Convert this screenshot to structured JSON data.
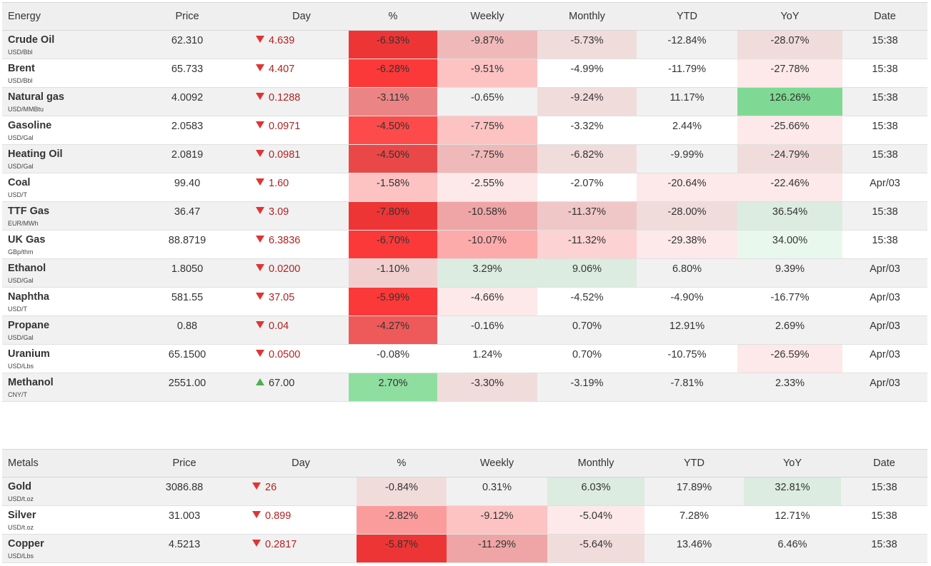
{
  "energy": {
    "headers": [
      "Energy",
      "Price",
      "Day",
      "%",
      "Weekly",
      "Monthly",
      "YTD",
      "YoY",
      "Date"
    ],
    "rows": [
      {
        "name": "Crude Oil",
        "unit": "USD/Bbl",
        "price": "62.310",
        "dir": "down",
        "day": "4.639",
        "pct": "-6.93%",
        "weekly": "-9.87%",
        "monthly": "-5.73%",
        "ytd": "-12.84%",
        "yoy": "-28.07%",
        "date": "15:38",
        "colors": {
          "pct": "#ee3535",
          "weekly": "#f0b9b9",
          "monthly": "#f1dcdc",
          "ytd": "",
          "yoy": "#f1dcdc"
        }
      },
      {
        "name": "Brent",
        "unit": "USD/Bbl",
        "price": "65.733",
        "dir": "down",
        "day": "4.407",
        "pct": "-6.28%",
        "weekly": "-9.51%",
        "monthly": "-4.99%",
        "ytd": "-11.79%",
        "yoy": "-27.78%",
        "date": "15:38",
        "colors": {
          "pct": "#fb3939",
          "weekly": "#fdc3c3",
          "monthly": "",
          "ytd": "",
          "yoy": "#fde9e9"
        }
      },
      {
        "name": "Natural gas",
        "unit": "USD/MMBtu",
        "price": "4.0092",
        "dir": "down",
        "day": "0.1288",
        "pct": "-3.11%",
        "weekly": "-0.65%",
        "monthly": "-9.24%",
        "ytd": "11.17%",
        "yoy": "126.26%",
        "date": "15:38",
        "colors": {
          "pct": "#eb8585",
          "weekly": "",
          "monthly": "#f1dcdc",
          "ytd": "",
          "yoy": "#7fd994"
        }
      },
      {
        "name": "Gasoline",
        "unit": "USD/Gal",
        "price": "2.0583",
        "dir": "down",
        "day": "0.0971",
        "pct": "-4.50%",
        "weekly": "-7.75%",
        "monthly": "-3.32%",
        "ytd": "2.44%",
        "yoy": "-25.66%",
        "date": "15:38",
        "colors": {
          "pct": "#fd4b4b",
          "weekly": "#fdc3c3",
          "monthly": "",
          "ytd": "",
          "yoy": "#fde9e9"
        }
      },
      {
        "name": "Heating Oil",
        "unit": "USD/Gal",
        "price": "2.0819",
        "dir": "down",
        "day": "0.0981",
        "pct": "-4.50%",
        "weekly": "-7.75%",
        "monthly": "-6.82%",
        "ytd": "-9.99%",
        "yoy": "-24.79%",
        "date": "15:38",
        "colors": {
          "pct": "#ea4848",
          "weekly": "#f0b9b9",
          "monthly": "#f1dcdc",
          "ytd": "",
          "yoy": "#f1dcdc"
        }
      },
      {
        "name": "Coal",
        "unit": "USD/T",
        "price": "99.40",
        "dir": "down",
        "day": "1.60",
        "pct": "-1.58%",
        "weekly": "-2.55%",
        "monthly": "-2.07%",
        "ytd": "-20.64%",
        "yoy": "-22.46%",
        "date": "Apr/03",
        "colors": {
          "pct": "#fdc3c3",
          "weekly": "#fde9e9",
          "monthly": "",
          "ytd": "#fde9e9",
          "yoy": "#fde9e9"
        }
      },
      {
        "name": "TTF Gas",
        "unit": "EUR/MWh",
        "price": "36.47",
        "dir": "down",
        "day": "3.09",
        "pct": "-7.80%",
        "weekly": "-10.58%",
        "monthly": "-11.37%",
        "ytd": "-28.00%",
        "yoy": "36.54%",
        "date": "15:38",
        "colors": {
          "pct": "#ee3535",
          "weekly": "#efa5a5",
          "monthly": "#f0c7c7",
          "ytd": "#f1dcdc",
          "yoy": "#dcece0"
        }
      },
      {
        "name": "UK Gas",
        "unit": "GBp/thm",
        "price": "88.8719",
        "dir": "down",
        "day": "6.3836",
        "pct": "-6.70%",
        "weekly": "-10.07%",
        "monthly": "-11.32%",
        "ytd": "-29.38%",
        "yoy": "34.00%",
        "date": "15:38",
        "colors": {
          "pct": "#fb3939",
          "weekly": "#fdaaaa",
          "monthly": "#fdd2d2",
          "ytd": "#fde9e9",
          "yoy": "#e9f8ec"
        }
      },
      {
        "name": "Ethanol",
        "unit": "USD/Gal",
        "price": "1.8050",
        "dir": "down",
        "day": "0.0200",
        "pct": "-1.10%",
        "weekly": "3.29%",
        "monthly": "9.06%",
        "ytd": "6.80%",
        "yoy": "9.39%",
        "date": "Apr/03",
        "colors": {
          "pct": "#f1cfcf",
          "weekly": "#dcece0",
          "monthly": "#dcece0",
          "ytd": "",
          "yoy": ""
        }
      },
      {
        "name": "Naphtha",
        "unit": "USD/T",
        "price": "581.55",
        "dir": "down",
        "day": "37.05",
        "pct": "-5.99%",
        "weekly": "-4.66%",
        "monthly": "-4.52%",
        "ytd": "-4.90%",
        "yoy": "-16.77%",
        "date": "Apr/03",
        "colors": {
          "pct": "#fb3939",
          "weekly": "#fde9e9",
          "monthly": "",
          "ytd": "",
          "yoy": ""
        }
      },
      {
        "name": "Propane",
        "unit": "USD/Gal",
        "price": "0.88",
        "dir": "down",
        "day": "0.04",
        "pct": "-4.27%",
        "weekly": "-0.16%",
        "monthly": "0.70%",
        "ytd": "12.91%",
        "yoy": "2.69%",
        "date": "Apr/03",
        "colors": {
          "pct": "#ee5a5a",
          "weekly": "",
          "monthly": "",
          "ytd": "",
          "yoy": ""
        }
      },
      {
        "name": "Uranium",
        "unit": "USD/Lbs",
        "price": "65.1500",
        "dir": "down",
        "day": "0.0500",
        "pct": "-0.08%",
        "weekly": "1.24%",
        "monthly": "0.70%",
        "ytd": "-10.75%",
        "yoy": "-26.59%",
        "date": "Apr/03",
        "colors": {
          "pct": "",
          "weekly": "",
          "monthly": "",
          "ytd": "",
          "yoy": "#fde9e9"
        }
      },
      {
        "name": "Methanol",
        "unit": "CNY/T",
        "price": "2551.00",
        "dir": "up",
        "day": "67.00",
        "pct": "2.70%",
        "weekly": "-3.30%",
        "monthly": "-3.19%",
        "ytd": "-7.81%",
        "yoy": "2.33%",
        "date": "Apr/03",
        "colors": {
          "pct": "#8edf9f",
          "weekly": "#f1dcdc",
          "monthly": "",
          "ytd": "",
          "yoy": ""
        }
      }
    ]
  },
  "metals": {
    "headers": [
      "Metals",
      "Price",
      "Day",
      "%",
      "Weekly",
      "Monthly",
      "YTD",
      "YoY",
      "Date"
    ],
    "rows": [
      {
        "name": "Gold",
        "unit": "USD/t.oz",
        "price": "3086.88",
        "dir": "down",
        "day": "26",
        "pct": "-0.84%",
        "weekly": "0.31%",
        "monthly": "6.03%",
        "ytd": "17.89%",
        "yoy": "32.81%",
        "date": "15:38",
        "colors": {
          "pct": "#f1dcdc",
          "weekly": "",
          "monthly": "#dcece0",
          "ytd": "",
          "yoy": "#dcece0"
        }
      },
      {
        "name": "Silver",
        "unit": "USD/t.oz",
        "price": "31.003",
        "dir": "down",
        "day": "0.899",
        "pct": "-2.82%",
        "weekly": "-9.12%",
        "monthly": "-5.04%",
        "ytd": "7.28%",
        "yoy": "12.71%",
        "date": "15:38",
        "colors": {
          "pct": "#fb9c9c",
          "weekly": "#fdc3c3",
          "monthly": "#fde9e9",
          "ytd": "",
          "yoy": ""
        }
      },
      {
        "name": "Copper",
        "unit": "USD/Lbs",
        "price": "4.5213",
        "dir": "down",
        "day": "0.2817",
        "pct": "-5.87%",
        "weekly": "-11.29%",
        "monthly": "-5.64%",
        "ytd": "13.46%",
        "yoy": "6.46%",
        "date": "15:38",
        "colors": {
          "pct": "#ee3535",
          "weekly": "#efa5a5",
          "monthly": "#f1dcdc",
          "ytd": "",
          "yoy": ""
        }
      }
    ]
  }
}
